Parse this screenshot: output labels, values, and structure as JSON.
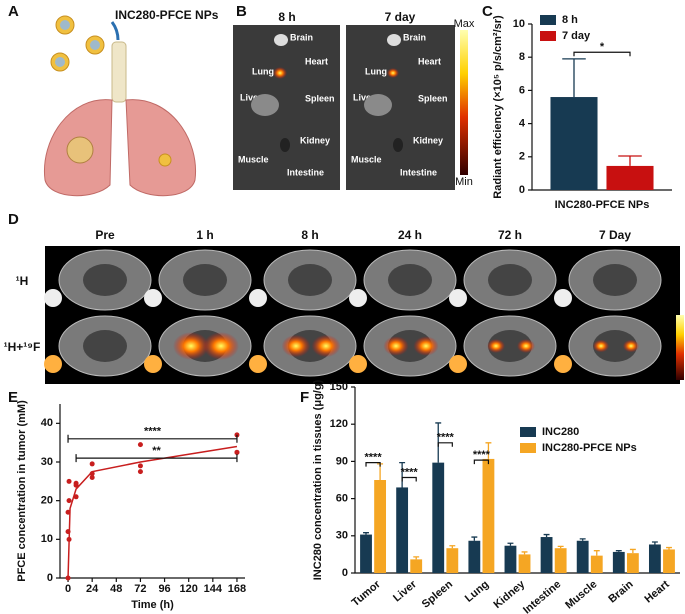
{
  "panel_labels": [
    "A",
    "B",
    "C",
    "D",
    "E",
    "F"
  ],
  "panel_a": {
    "label": "INC280-PFCE NPs"
  },
  "panel_b": {
    "times": [
      "8 h",
      "7 day"
    ],
    "organs": [
      "Brain",
      "Heart",
      "Lung",
      "Liver",
      "Spleen",
      "Kidney",
      "Muscle",
      "Intestine"
    ],
    "scale": [
      "Max",
      "Min"
    ]
  },
  "panel_d": {
    "columns": [
      "Pre",
      "1 h",
      "8 h",
      "24 h",
      "72 h",
      "7 Day"
    ],
    "rows": [
      "¹H",
      "¹H+¹⁹F"
    ]
  },
  "chart_data": [
    {
      "type": "bar",
      "ylabel": "Radiant efficiency (×10⁵ p/s/cm²/sr)",
      "categories": [
        "INC280-PFCE NPs"
      ],
      "series": [
        {
          "name": "8 h",
          "color": "#173a52",
          "values": [
            5.6
          ],
          "errors": [
            2.3
          ]
        },
        {
          "name": "7 day",
          "color": "#c81010",
          "values": [
            1.45
          ],
          "errors": [
            0.6
          ]
        }
      ],
      "ylim": [
        0,
        10
      ],
      "yticks": [
        0,
        2,
        4,
        6,
        8,
        10
      ],
      "legend": "upper left",
      "brackets": [
        {
          "text": "*",
          "category": 0,
          "y": 8.3
        }
      ]
    },
    {
      "type": "scatter",
      "xlabel": "Time (h)",
      "ylabel": "PFCE concentration in tumor (mM)",
      "series": [
        {
          "color": "#c81e1e",
          "x": [
            0,
            0,
            0,
            1,
            1,
            1,
            8,
            8,
            8,
            24,
            24,
            24,
            72,
            72,
            72,
            168,
            168,
            168
          ],
          "values": [
            0,
            17,
            12,
            20,
            25,
            10,
            24,
            21,
            24.5,
            26,
            27,
            29.5,
            34.5,
            29,
            27.5,
            37,
            32.5,
            32.5
          ]
        },
        {
          "color": "#c81e1e",
          "line": true,
          "x": [
            0,
            2,
            8,
            24,
            72,
            168
          ],
          "values": [
            0,
            18,
            23,
            27.5,
            30,
            34
          ]
        }
      ],
      "xlim": [
        -8,
        176
      ],
      "xticks": [
        0,
        24,
        48,
        72,
        96,
        120,
        144,
        168
      ],
      "ylim": [
        0,
        45
      ],
      "yticks": [
        0,
        10,
        20,
        30,
        40
      ],
      "brackets": [
        {
          "text": "****",
          "x": [
            0,
            168
          ],
          "y": 36
        },
        {
          "text": "**",
          "x": [
            8,
            168
          ],
          "y": 31
        }
      ]
    },
    {
      "type": "bar",
      "ylabel": "INC280 concentration in tissues (μg/g)",
      "categories": [
        "Tumor",
        "Liver",
        "Spleen",
        "Lung",
        "Kidney",
        "Intestine",
        "Muscle",
        "Brain",
        "Heart"
      ],
      "series": [
        {
          "name": "INC280",
          "color": "#173a52",
          "values": [
            31,
            69,
            89,
            26,
            22,
            29,
            26,
            17,
            23
          ],
          "errors": [
            1.5,
            20,
            32,
            3,
            2,
            2,
            1.5,
            1,
            2
          ]
        },
        {
          "name": "INC280-PFCE NPs",
          "color": "#f5a623",
          "values": [
            75,
            11,
            20,
            92,
            15,
            20,
            14,
            16,
            19
          ],
          "errors": [
            13,
            2,
            2,
            13,
            2,
            1.5,
            4,
            3,
            1.5
          ]
        }
      ],
      "ylim": [
        0,
        150
      ],
      "yticks": [
        0,
        30,
        60,
        90,
        120,
        150
      ],
      "legend": "upper right",
      "brackets": [
        {
          "text": "****",
          "category": 0,
          "y": 89
        },
        {
          "text": "****",
          "category": 1,
          "y": 77
        },
        {
          "text": "****",
          "category": 2,
          "y": 105
        },
        {
          "text": "****",
          "category": 3,
          "y": 91
        }
      ]
    }
  ]
}
